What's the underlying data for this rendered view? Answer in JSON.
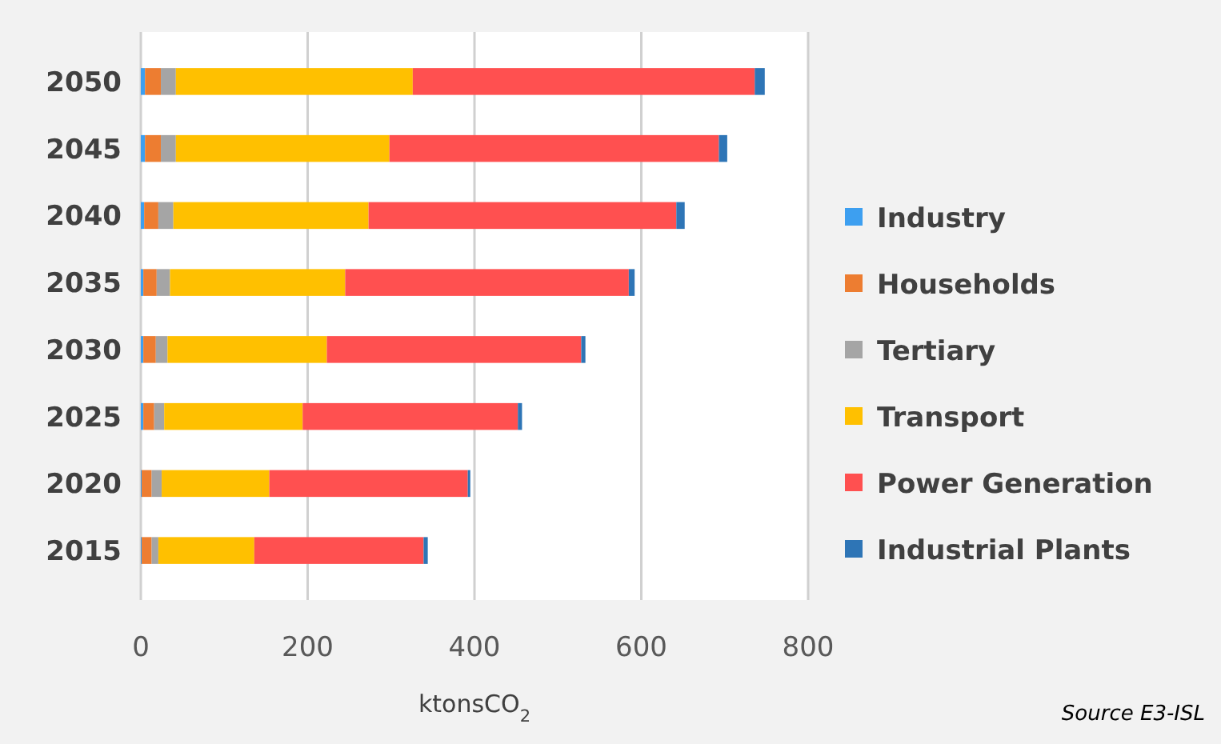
{
  "chart_data": {
    "type": "bar",
    "orientation": "horizontal",
    "stacked": true,
    "categories": [
      "2050",
      "2045",
      "2040",
      "2035",
      "2030",
      "2025",
      "2020",
      "2015"
    ],
    "series": [
      {
        "name": "Industry",
        "color": "#3d9ff0",
        "values": [
          5,
          5,
          4,
          3,
          3,
          3,
          1,
          1
        ]
      },
      {
        "name": "Households",
        "color": "#ed7d31",
        "values": [
          19,
          19,
          17,
          16,
          15,
          13,
          12,
          12
        ]
      },
      {
        "name": "Tertiary",
        "color": "#a5a5a5",
        "values": [
          18,
          18,
          18,
          16,
          14,
          12,
          12,
          8
        ]
      },
      {
        "name": "Transport",
        "color": "#ffc000",
        "values": [
          284,
          256,
          234,
          210,
          191,
          166,
          129,
          115
        ]
      },
      {
        "name": "Power Generation",
        "color": "#ff5050",
        "values": [
          410,
          395,
          369,
          340,
          305,
          258,
          238,
          203
        ]
      },
      {
        "name": "Industrial Plants",
        "color": "#2e75b6",
        "values": [
          12,
          10,
          10,
          7,
          5,
          5,
          3,
          5
        ]
      }
    ],
    "xlim": [
      0,
      800
    ],
    "xticks": [
      0,
      200,
      400,
      600,
      800
    ],
    "grid": "x",
    "legend": "right",
    "xlabel": "ktonsCO$_{2}$",
    "annotations": [
      "Source E3-ISL"
    ]
  }
}
